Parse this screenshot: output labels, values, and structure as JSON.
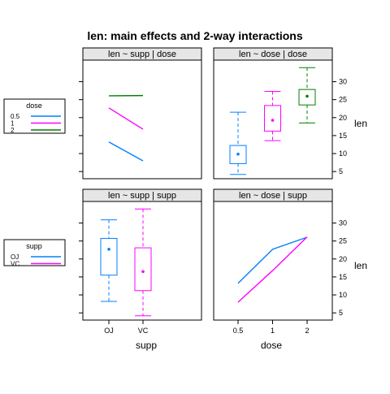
{
  "title": "len: main effects and 2-way interactions",
  "colors": {
    "OJ": "#0080ff",
    "VC": "#ff00ff",
    "0.5": "#0080ff",
    "1": "#ff00ff",
    "2": "#008000",
    "strip_bg": "#e6e6e6",
    "frame": "#000000"
  },
  "legends": [
    {
      "title": "dose",
      "entries": [
        {
          "label": "0.5",
          "color_key": "0.5"
        },
        {
          "label": "1",
          "color_key": "1"
        },
        {
          "label": "2",
          "color_key": "2"
        }
      ]
    },
    {
      "title": "supp",
      "entries": [
        {
          "label": "OJ",
          "color_key": "OJ"
        },
        {
          "label": "VC",
          "color_key": "VC"
        }
      ]
    }
  ],
  "axes": {
    "xlabel_left": "supp",
    "xlabel_right": "dose",
    "ylabel": "len",
    "left_x_ticks": [
      "OJ",
      "VC"
    ],
    "right_x_ticks": [
      "0.5",
      "1",
      "2"
    ],
    "y_ticks": [
      "5",
      "10",
      "15",
      "20",
      "25",
      "30"
    ],
    "ylim": [
      3,
      36
    ]
  },
  "chart_data": [
    {
      "type": "line",
      "strip": "len ~ supp | dose",
      "categories": [
        "OJ",
        "VC"
      ],
      "series": [
        {
          "name": "0.5",
          "values": [
            13.23,
            7.98
          ]
        },
        {
          "name": "1",
          "values": [
            22.7,
            16.77
          ]
        },
        {
          "name": "2",
          "values": [
            26.06,
            26.14
          ]
        }
      ]
    },
    {
      "type": "box",
      "strip": "len ~ dose | dose",
      "categories": [
        "0.5",
        "1",
        "2"
      ],
      "boxes": [
        {
          "name": "0.5",
          "min": 4.2,
          "q1": 7.2,
          "median": 9.85,
          "mean": 10.6,
          "q3": 12.25,
          "max": 21.5
        },
        {
          "name": "1",
          "min": 13.6,
          "q1": 16.25,
          "median": 19.25,
          "mean": 19.74,
          "q3": 23.38,
          "max": 27.3
        },
        {
          "name": "2",
          "min": 18.5,
          "q1": 23.53,
          "median": 25.95,
          "mean": 26.1,
          "q3": 27.83,
          "max": 33.9
        }
      ]
    },
    {
      "type": "box",
      "strip": "len ~ supp | supp",
      "categories": [
        "OJ",
        "VC"
      ],
      "boxes": [
        {
          "name": "OJ",
          "min": 8.2,
          "q1": 15.5,
          "median": 22.7,
          "mean": 20.66,
          "q3": 25.73,
          "max": 30.9
        },
        {
          "name": "VC",
          "min": 4.2,
          "q1": 11.2,
          "median": 16.5,
          "mean": 16.96,
          "q3": 23.1,
          "max": 33.9
        }
      ]
    },
    {
      "type": "line",
      "strip": "len ~ dose | supp",
      "categories": [
        "0.5",
        "1",
        "2"
      ],
      "series": [
        {
          "name": "OJ",
          "values": [
            13.23,
            22.7,
            26.06
          ]
        },
        {
          "name": "VC",
          "values": [
            7.98,
            16.77,
            26.14
          ]
        }
      ]
    }
  ]
}
